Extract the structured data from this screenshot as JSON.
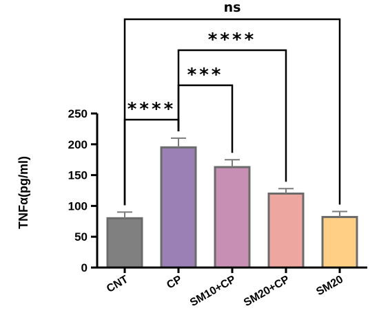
{
  "chart_data": {
    "type": "bar",
    "categories": [
      "CNT",
      "CP",
      "SM10+CP",
      "SM20+CP",
      "SM20"
    ],
    "values": [
      80,
      195,
      163,
      120,
      82
    ],
    "errors": [
      10,
      15,
      12,
      8,
      9
    ],
    "colors": [
      "#808080",
      "#9a80b5",
      "#c68fb3",
      "#eea6a1",
      "#fecf84"
    ],
    "ylabel": "TNFα(pg/ml)",
    "xlabel": "",
    "ylim": [
      0,
      250
    ],
    "yticks": [
      0,
      50,
      100,
      150,
      200,
      250
    ],
    "significance": [
      {
        "from": "CNT",
        "to": "CP",
        "label": "****"
      },
      {
        "from": "CP",
        "to": "SM10+CP",
        "label": "***"
      },
      {
        "from": "CP",
        "to": "SM20+CP",
        "label": "****"
      },
      {
        "from": "CNT",
        "to": "SM20",
        "label": "ns"
      }
    ]
  }
}
